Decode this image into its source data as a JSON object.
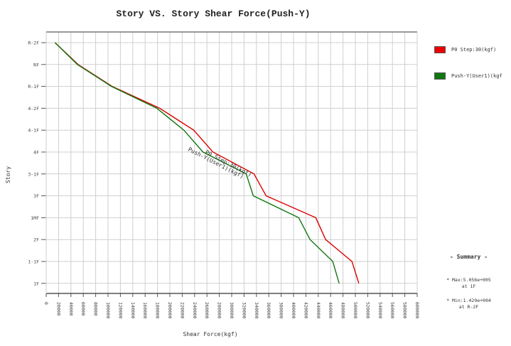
{
  "chart_data": {
    "type": "line",
    "title": "Story VS. Story Shear Force(Push-Y)",
    "xlabel": "Shear Force(kgf)",
    "ylabel": "Story",
    "xlim": [
      0,
      600000
    ],
    "x_ticks": [
      "0",
      "20000",
      "40000",
      "60000",
      "80000",
      "100000",
      "120000",
      "140000",
      "160000",
      "180000",
      "200000",
      "220000",
      "240000",
      "260000",
      "280000",
      "300000",
      "320000",
      "340000",
      "360000",
      "380000",
      "400000",
      "420000",
      "440000",
      "460000",
      "480000",
      "500000",
      "520000",
      "540000",
      "560000",
      "580000",
      "600000"
    ],
    "categories": [
      "R-2F",
      "RF",
      "R-1F",
      "4-2F",
      "4-1F",
      "4F",
      "3-1F",
      "3F",
      "1MF",
      "2F",
      "1-1F",
      "1F"
    ],
    "grid": true,
    "legend_position": "right",
    "series": [
      {
        "name": "P0 Step:30(kgf)",
        "color": "#dd0000",
        "values": [
          14290,
          51600,
          106700,
          183600,
          238600,
          269600,
          336100,
          355600,
          436000,
          452000,
          494500,
          505600
        ]
      },
      {
        "name": "Push-Y(User1)(kgf",
        "color": "#117711",
        "values": [
          14290,
          50500,
          105500,
          179000,
          222600,
          253600,
          323500,
          335000,
          408400,
          426800,
          463500,
          473800
        ]
      }
    ],
    "annotations": [
      "P0 Step:30(kgf)",
      "Push-Y(User1)(kgf)"
    ]
  },
  "legend": {
    "items": [
      {
        "label": "P0 Step:30(kgf)",
        "color": "#ee0000"
      },
      {
        "label": "Push-Y(User1)(kgf",
        "color": "#117711"
      }
    ]
  },
  "summary": {
    "title": "- Summary -",
    "max_line": "* Max:5.056e+005",
    "max_at": "at 1F",
    "min_line": "* Min:1.429e+004",
    "min_at": "at R-2F"
  }
}
